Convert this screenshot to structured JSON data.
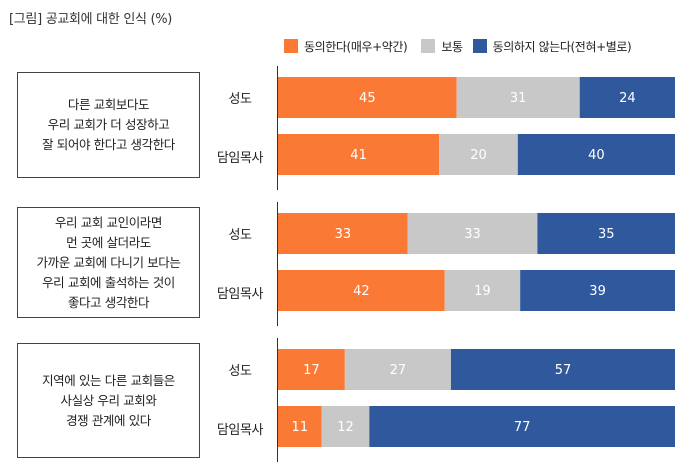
{
  "title": "[그림] 공교회에 대한 인식 (%)",
  "legend": [
    {
      "label": "동의한다(매우+약간)",
      "color": "#fa7a35"
    },
    {
      "label": "보통",
      "color": "#c8c8c8"
    },
    {
      "label": "동의하지 않는다(전혀+별로)",
      "color": "#30599d"
    }
  ],
  "chart_data": {
    "type": "bar",
    "orientation": "horizontal",
    "stacked": true,
    "title": "[그림] 공교회에 대한 인식 (%)",
    "xlim": [
      0,
      100
    ],
    "series_names": [
      "동의한다(매우+약간)",
      "보통",
      "동의하지 않는다(전혀+별로)"
    ],
    "colors": [
      "#fa7a35",
      "#c8c8c8",
      "#30599d"
    ],
    "groups": [
      {
        "question": "다른 교회보다도\n우리 교회가 더 성장하고\n잘 되어야 한다고 생각한다",
        "rows": [
          {
            "label": "성도",
            "values": [
              45,
              31,
              24
            ]
          },
          {
            "label": "담임목사",
            "values": [
              41,
              20,
              40
            ]
          }
        ]
      },
      {
        "question": "우리 교회 교인이라면\n먼 곳에 살더라도\n가까운 교회에 다니기 보다는\n우리 교회에 출석하는 것이\n좋다고 생각한다",
        "rows": [
          {
            "label": "성도",
            "values": [
              33,
              33,
              35
            ]
          },
          {
            "label": "담임목사",
            "values": [
              42,
              19,
              39
            ]
          }
        ]
      },
      {
        "question": "지역에 있는 다른 교회들은\n사실상 우리 교회와\n경쟁 관계에 있다",
        "rows": [
          {
            "label": "성도",
            "values": [
              17,
              27,
              57
            ]
          },
          {
            "label": "담임목사",
            "values": [
              11,
              12,
              77
            ]
          }
        ]
      }
    ]
  }
}
